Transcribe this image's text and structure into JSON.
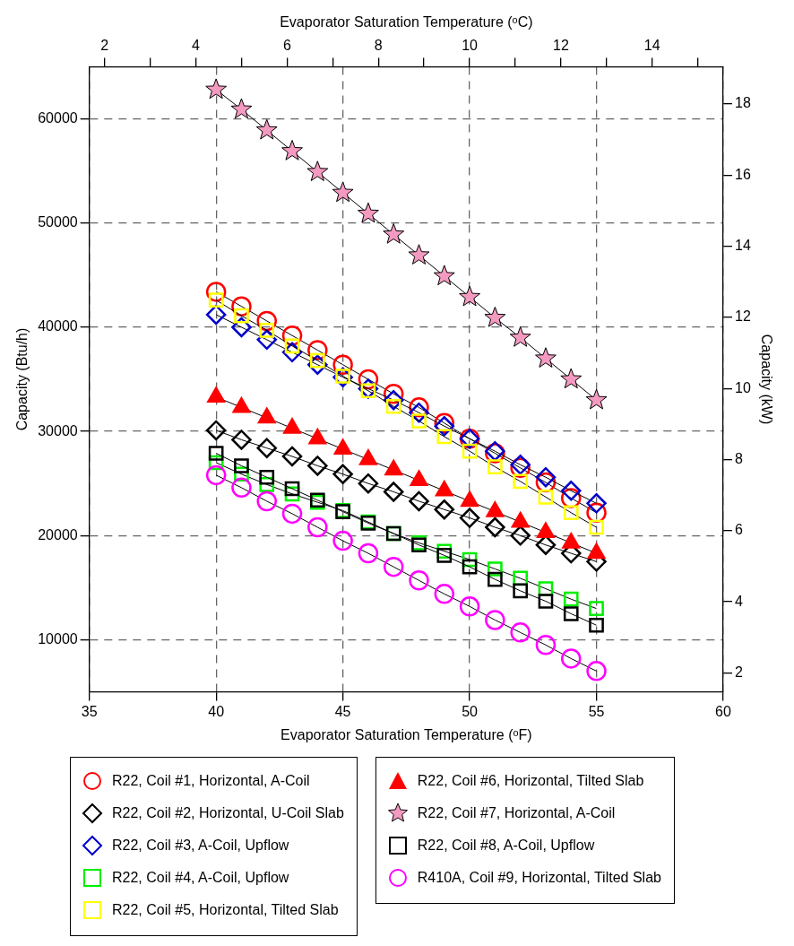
{
  "chart_data": {
    "type": "line",
    "xlabel": "Evaporator Saturation Temperature (ᵒF)",
    "x2label": "Evaporator Saturation Temperature (ᵒC)",
    "ylabel": "Capacity (Btu/h)",
    "y2label": "Capacity (kW)",
    "x": [
      40,
      41,
      42,
      43,
      44,
      45,
      46,
      47,
      48,
      49,
      50,
      51,
      52,
      53,
      54,
      55
    ],
    "xlim": [
      35,
      60
    ],
    "xticks": [
      35,
      40,
      45,
      50,
      55,
      60
    ],
    "x2lim": [
      1.667,
      15.556
    ],
    "x2ticks": [
      2,
      {
        "value": 3,
        "label": null
      },
      4,
      {
        "value": 5,
        "label": null
      },
      6,
      {
        "value": 7,
        "label": null
      },
      8,
      {
        "value": 9,
        "label": null
      },
      10,
      {
        "value": 11,
        "label": null
      },
      12,
      {
        "value": 13,
        "label": null
      },
      14,
      {
        "value": 15,
        "label": null
      }
    ],
    "ylim": [
      5000,
      65000
    ],
    "yticks": [
      10000,
      20000,
      30000,
      40000,
      50000,
      60000
    ],
    "y2lim": [
      1.465,
      19.05
    ],
    "y2ticks": [
      2,
      4,
      6,
      8,
      10,
      12,
      14,
      16,
      18
    ],
    "grid": true,
    "legend": "bottom",
    "series": [
      {
        "name": "R22, Coil #1, Horizontal, A-Coil",
        "color": "#ff0000",
        "marker": "circle",
        "values": [
          43400,
          42000,
          40600,
          39200,
          37800,
          36400,
          35000,
          33600,
          32300,
          30800,
          29300,
          27900,
          26500,
          25100,
          23600,
          22200
        ]
      },
      {
        "name": "R22, Coil #2, Horizontal, U-Coil Slab",
        "color": "#000000",
        "marker": "diamond",
        "values": [
          30100,
          29200,
          28400,
          27600,
          26700,
          25900,
          25000,
          24200,
          23300,
          22500,
          21700,
          20800,
          20000,
          19100,
          18300,
          17500
        ]
      },
      {
        "name": "R22, Coil #3, A-Coil, Upflow",
        "color": "#0000cc",
        "marker": "diamond",
        "values": [
          41200,
          40000,
          38800,
          37600,
          36400,
          35200,
          34100,
          33000,
          31800,
          30500,
          29300,
          28100,
          26800,
          25600,
          24300,
          23100
        ]
      },
      {
        "name": "R22, Coil #4, A-Coil, Upflow",
        "color": "#00ee00",
        "marker": "square",
        "values": [
          27000,
          25900,
          24900,
          24000,
          23200,
          22400,
          21300,
          20200,
          19300,
          18500,
          17700,
          16800,
          15900,
          14900,
          13900,
          13000
        ]
      },
      {
        "name": "R22, Coil #5, Horizontal, Tilted Slab",
        "color": "#ffff00",
        "marker": "square",
        "values": [
          42600,
          41100,
          39700,
          38200,
          36800,
          35300,
          33900,
          32400,
          31000,
          29500,
          28100,
          26600,
          25200,
          23700,
          22200,
          20800
        ]
      },
      {
        "name": "R22, Coil #6, Horizontal, Tilted Slab",
        "color": "#ff0000",
        "marker": "triangle",
        "values": [
          33300,
          32300,
          31300,
          30300,
          29300,
          28300,
          27300,
          26300,
          25300,
          24300,
          23300,
          22300,
          21300,
          20300,
          19300,
          18300
        ]
      },
      {
        "name": "R22, Coil #7, Horizontal, A-Coil",
        "color": "#f49ac1",
        "marker": "star",
        "values": [
          62800,
          60900,
          58900,
          56900,
          54900,
          52900,
          50900,
          48900,
          46900,
          44900,
          42900,
          40900,
          39000,
          37000,
          35000,
          33000
        ]
      },
      {
        "name": "R22, Coil #8, A-Coil, Upflow",
        "color": "#000000",
        "marker": "square",
        "values": [
          27900,
          26700,
          25600,
          24500,
          23400,
          22300,
          21200,
          20200,
          19100,
          18100,
          17000,
          15800,
          14700,
          13700,
          12500,
          11400
        ]
      },
      {
        "name": "R410A, Coil #9, Horizontal, Tilted Slab",
        "color": "#ff00ff",
        "marker": "circle",
        "values": [
          25800,
          24600,
          23300,
          22100,
          20800,
          19500,
          18300,
          17000,
          15700,
          14400,
          13200,
          11900,
          10700,
          9500,
          8200,
          7000
        ]
      }
    ]
  }
}
